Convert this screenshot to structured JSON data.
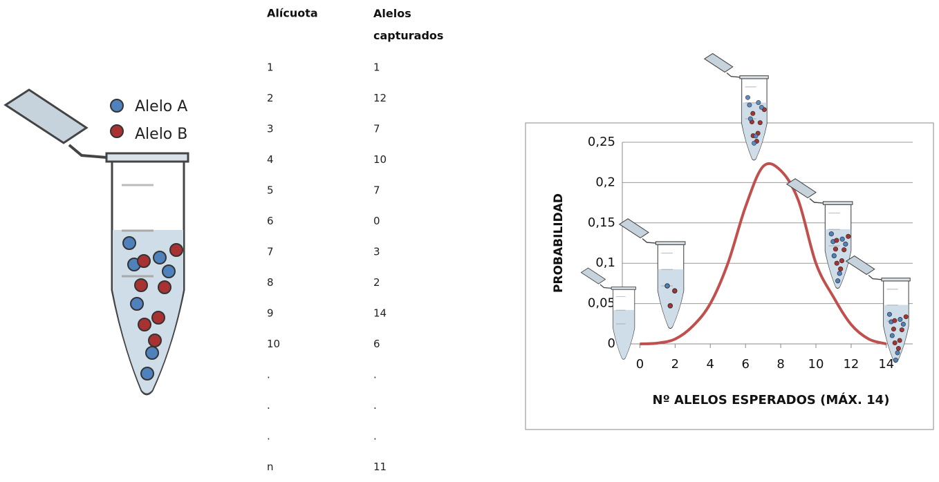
{
  "legend": [
    "Alelo A",
    "Alelo B"
  ],
  "table": {
    "header": [
      "Alícuota",
      "Alelos capturados"
    ],
    "rows": [
      [
        1,
        1
      ],
      [
        2,
        12
      ],
      [
        3,
        7
      ],
      [
        4,
        10
      ],
      [
        5,
        7
      ],
      [
        6,
        0
      ],
      [
        7,
        3
      ],
      [
        8,
        2
      ],
      [
        9,
        14
      ],
      [
        10,
        6
      ],
      [
        ".",
        "."
      ],
      [
        ".",
        "."
      ],
      [
        ".",
        "."
      ],
      [
        "n",
        11
      ]
    ]
  },
  "chart_data": {
    "type": "line",
    "x_label": "Nº ALELOS ESPERADOS (MÁX. 14)",
    "y_label": "PROBABILIDAD",
    "x": [
      0,
      1,
      2,
      3,
      4,
      5,
      6,
      7,
      8,
      9,
      10,
      11,
      12,
      13,
      14
    ],
    "series": [
      {
        "color": "#c0504d",
        "values": [
          0,
          0.001,
          0.006,
          0.022,
          0.05,
          0.1,
          0.17,
          0.22,
          0.215,
          0.178,
          0.1,
          0.058,
          0.024,
          0.006,
          0
        ]
      }
    ],
    "xlim": [
      -1,
      15.5
    ],
    "xticks": [
      0,
      2,
      4,
      6,
      8,
      10,
      12,
      14
    ],
    "ylim": [
      0,
      0.25
    ],
    "yticks": [
      0,
      {
        "value": 0.05,
        "label": "0,05"
      },
      {
        "value": 0.1,
        "label": "0,1"
      },
      {
        "value": 0.15,
        "label": "0,15"
      },
      {
        "value": 0.2,
        "label": "0,2"
      },
      {
        "value": 0.25,
        "label": "0,25"
      }
    ],
    "grid": true
  }
}
